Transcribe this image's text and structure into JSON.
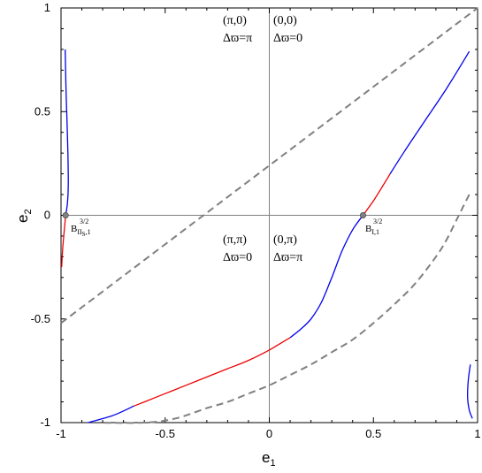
{
  "chart_data": {
    "type": "line",
    "title": "",
    "xlabel": "e",
    "xlabel_sub": "1",
    "ylabel": "e",
    "ylabel_sub": "2",
    "xlim": [
      -1,
      1
    ],
    "ylim": [
      -1,
      1
    ],
    "xticks": [
      -1,
      -0.5,
      0,
      0.5,
      1
    ],
    "yticks": [
      -1,
      -0.5,
      0,
      0.5,
      1
    ],
    "xtick_labels": [
      "-1",
      "-0.5",
      "0",
      "0.5",
      "1"
    ],
    "ytick_labels": [
      "-1",
      "-0.5",
      "0",
      "0.5",
      "1"
    ],
    "grid": false,
    "colors": {
      "blue": "#0000ee",
      "red": "#ee0000",
      "dashed": "#808080",
      "point": "#808080"
    },
    "series": [
      {
        "color": "blue",
        "style": "solid",
        "x": [
          -0.98,
          -0.976,
          -0.971,
          -0.967,
          -0.965,
          -0.969,
          -0.978
        ],
        "y": [
          0.8,
          0.6,
          0.45,
          0.3,
          0.15,
          0.06,
          0.0
        ]
      },
      {
        "color": "red",
        "style": "solid",
        "x": [
          -0.978,
          -0.985,
          -0.992,
          -0.997
        ],
        "y": [
          0.0,
          -0.08,
          -0.16,
          -0.25
        ]
      },
      {
        "color": "red",
        "style": "solid",
        "x": [
          0.45,
          0.5,
          0.55,
          0.58
        ],
        "y": [
          0.0,
          0.07,
          0.15,
          0.2
        ]
      },
      {
        "color": "blue",
        "style": "solid",
        "x": [
          0.58,
          0.65,
          0.75,
          0.85,
          0.96
        ],
        "y": [
          0.2,
          0.31,
          0.46,
          0.61,
          0.79
        ]
      },
      {
        "color": "blue",
        "style": "solid",
        "x": [
          0.45,
          0.4,
          0.35,
          0.3,
          0.25,
          0.2,
          0.15,
          0.1
        ],
        "y": [
          0.0,
          -0.07,
          -0.17,
          -0.3,
          -0.42,
          -0.5,
          -0.55,
          -0.59
        ]
      },
      {
        "color": "red",
        "style": "solid",
        "x": [
          0.1,
          0.05,
          0.0,
          -0.1,
          -0.2,
          -0.3,
          -0.4,
          -0.5,
          -0.6,
          -0.65
        ],
        "y": [
          -0.59,
          -0.62,
          -0.65,
          -0.7,
          -0.74,
          -0.78,
          -0.82,
          -0.86,
          -0.9,
          -0.92
        ]
      },
      {
        "color": "blue",
        "style": "solid",
        "x": [
          -0.65,
          -0.75,
          -0.87
        ],
        "y": [
          -0.92,
          -0.965,
          -1.0
        ]
      },
      {
        "color": "blue",
        "style": "solid",
        "x": [
          0.965,
          0.955,
          0.952,
          0.96,
          0.975
        ],
        "y": [
          -0.72,
          -0.8,
          -0.88,
          -0.94,
          -0.98
        ]
      },
      {
        "color": "dashed",
        "style": "dashed",
        "x": [
          -1,
          1
        ],
        "y": [
          -0.52,
          1.0
        ]
      },
      {
        "color": "dashed",
        "style": "dashed",
        "x": [
          -0.85,
          -0.6,
          -0.45,
          -0.3,
          -0.2,
          -0.1,
          0.0,
          0.1,
          0.2,
          0.3,
          0.4,
          0.5,
          0.6,
          0.7,
          0.8,
          0.85,
          0.9,
          0.93,
          0.96
        ],
        "y": [
          -1.0,
          -1.0,
          -0.98,
          -0.93,
          -0.9,
          -0.86,
          -0.82,
          -0.77,
          -0.72,
          -0.66,
          -0.6,
          -0.52,
          -0.43,
          -0.33,
          -0.2,
          -0.12,
          -0.02,
          0.04,
          0.1
        ]
      }
    ],
    "points": [
      {
        "x": -0.978,
        "y": 0.0
      },
      {
        "x": 0.45,
        "y": 0.0
      }
    ],
    "annotations": {
      "q_tl": {
        "phase": "(π,0)",
        "delta": "Δϖ=π"
      },
      "q_tr": {
        "phase": "(0,0)",
        "delta": "Δϖ=0"
      },
      "q_bl": {
        "phase": "(π,π)",
        "delta": "Δϖ=0"
      },
      "q_br": {
        "phase": "(0,π)",
        "delta": "Δϖ=π"
      }
    },
    "point_labels": {
      "left": {
        "base": "B",
        "sub": "II",
        "subsub": "S",
        "subtail": ",1",
        "sup": "3/2"
      },
      "right": {
        "base": "B",
        "sub": "I,1",
        "sup": "3/2"
      }
    }
  }
}
